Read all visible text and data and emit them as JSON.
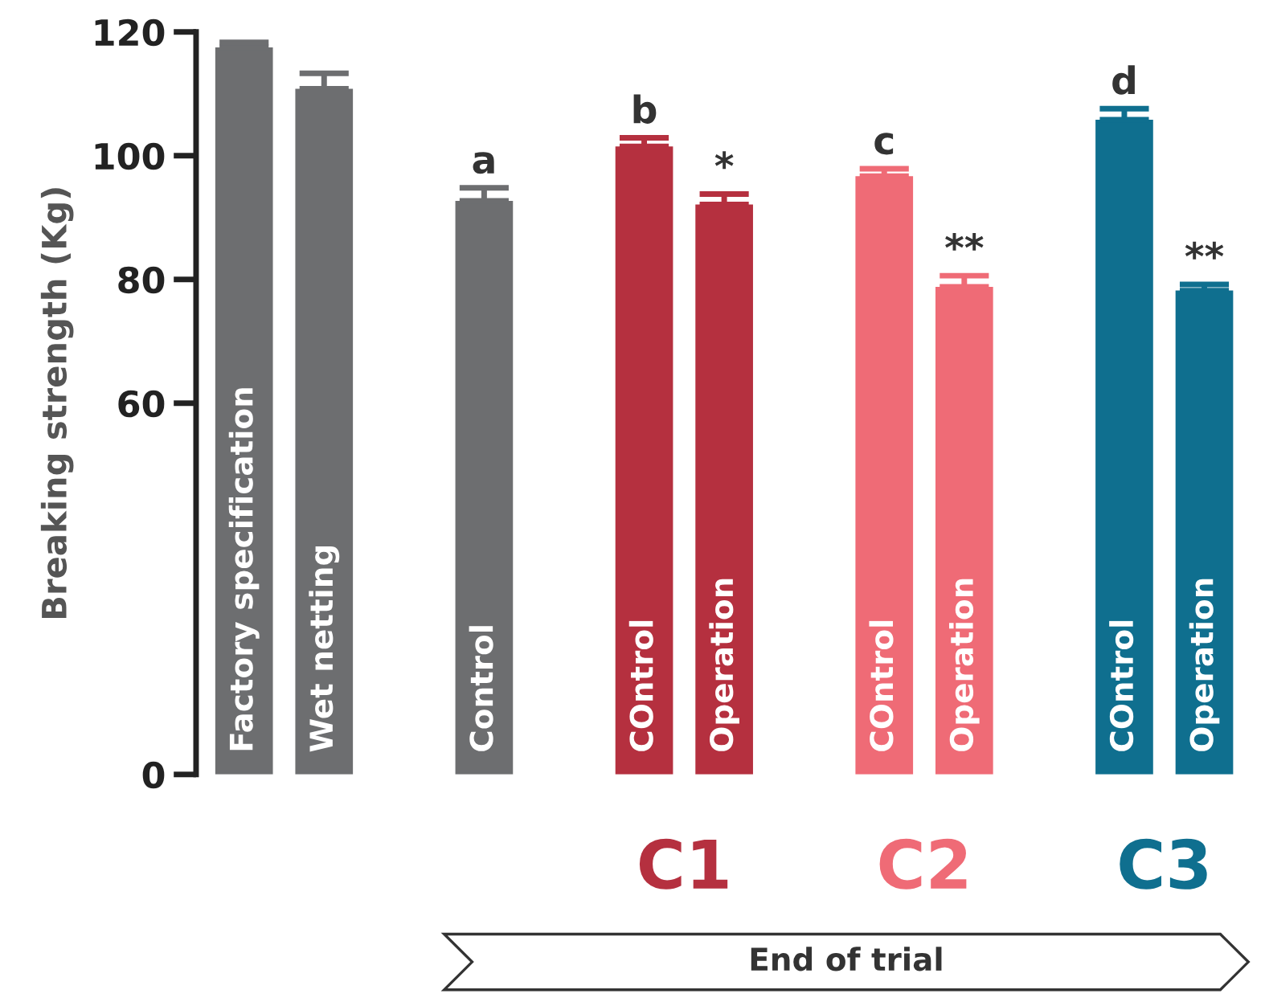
{
  "chart_data": {
    "type": "bar",
    "ylabel": "Breaking strength (Kg)",
    "categories": [
      "Factory specification",
      "Wet netting",
      null,
      "Control",
      null,
      "COntrol",
      "Operation",
      null,
      "COntrol",
      "Operation",
      null,
      "COntrol",
      "Operation"
    ],
    "series": [
      {
        "color": "#6d6e70",
        "values": [
          117.5,
          110.8,
          null,
          92.7,
          null,
          null,
          null,
          null,
          null,
          null,
          null,
          null,
          null
        ],
        "errors": [
          [
            117.5,
            118.3
          ],
          [
            110.8,
            113.3
          ],
          null,
          [
            92.7,
            94.8
          ],
          null,
          null,
          null,
          null,
          null,
          null,
          null,
          null,
          null
        ],
        "value_labels": [
          null,
          null,
          null,
          "a",
          null,
          null,
          null,
          null,
          null,
          null,
          null,
          null,
          null
        ]
      },
      {
        "name": "C1",
        "color": "#b5303f",
        "values": [
          null,
          null,
          null,
          null,
          null,
          101.5,
          92.1,
          null,
          null,
          null,
          null,
          null,
          null
        ],
        "errors": [
          null,
          null,
          null,
          null,
          null,
          [
            101.5,
            102.9
          ],
          [
            92.1,
            93.8
          ],
          null,
          null,
          null,
          null,
          null,
          null
        ],
        "value_labels": [
          null,
          null,
          null,
          null,
          null,
          "b",
          "*",
          null,
          null,
          null,
          null,
          null,
          null
        ]
      },
      {
        "name": "C2",
        "color": "#ef6b76",
        "values": [
          null,
          null,
          null,
          null,
          null,
          null,
          null,
          null,
          96.7,
          78.8,
          null,
          null,
          null
        ],
        "errors": [
          null,
          null,
          null,
          null,
          null,
          null,
          null,
          null,
          [
            96.7,
            97.9
          ],
          [
            78.8,
            80.6
          ],
          null,
          null,
          null
        ],
        "value_labels": [
          null,
          null,
          null,
          null,
          null,
          null,
          null,
          null,
          "c",
          "**",
          null,
          null,
          null
        ]
      },
      {
        "name": "C3",
        "color": "#0f6f8f",
        "values": [
          null,
          null,
          null,
          null,
          null,
          null,
          null,
          null,
          null,
          null,
          null,
          105.8,
          78.2
        ],
        "errors": [
          null,
          null,
          null,
          null,
          null,
          null,
          null,
          null,
          null,
          null,
          null,
          [
            105.8,
            107.6
          ],
          [
            78.2,
            79.2
          ]
        ],
        "value_labels": [
          null,
          null,
          null,
          null,
          null,
          null,
          null,
          null,
          null,
          null,
          null,
          "d",
          "**"
        ]
      }
    ],
    "ylim": [
      0,
      120
    ],
    "yticks": [
      0,
      60,
      80,
      100,
      120
    ],
    "grid": false,
    "annotations": [
      "End of trial"
    ]
  }
}
